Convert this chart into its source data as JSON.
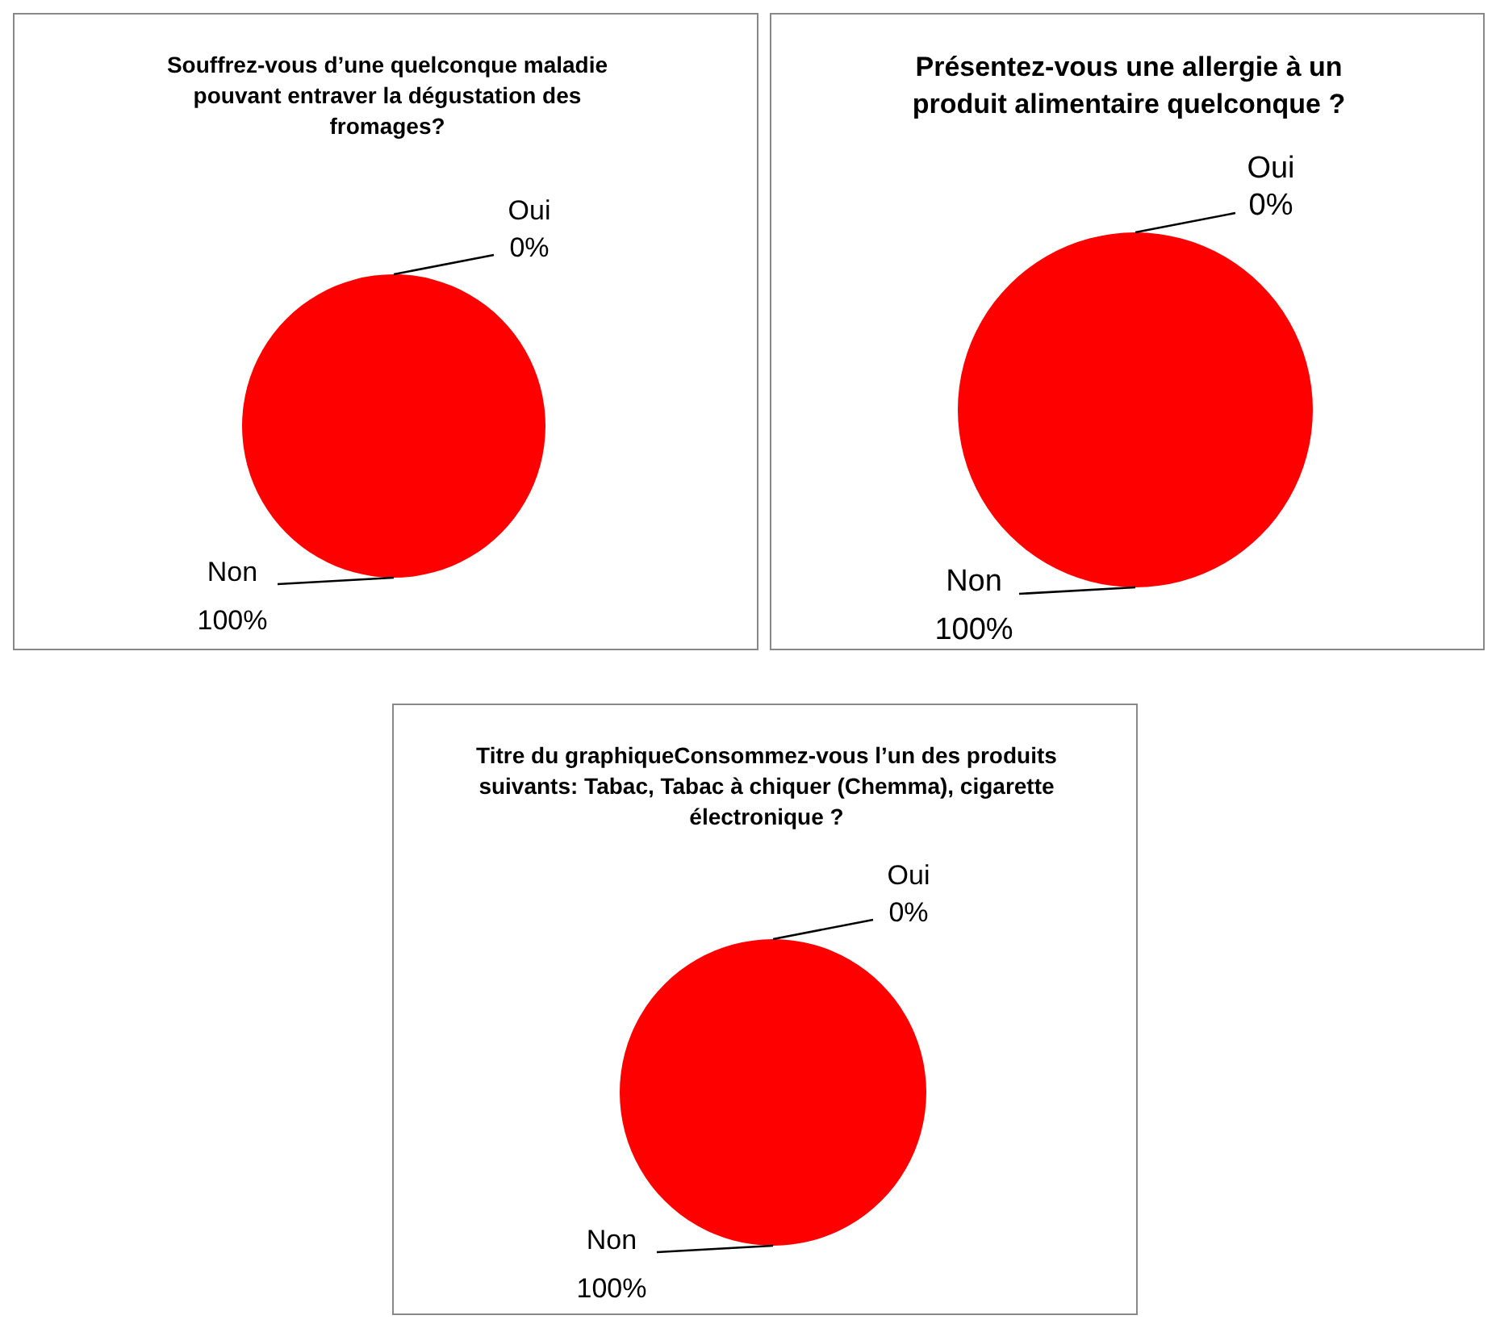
{
  "chart_data": [
    {
      "type": "pie",
      "title": "Souffrez-vous d’une quelconque maladie pouvant entraver la dégustation des fromages?",
      "categories": [
        "Oui",
        "Non"
      ],
      "values": [
        0,
        100
      ],
      "colors": [
        "#4f81bd",
        "#ff0000"
      ],
      "value_labels": [
        "0%",
        "100%"
      ]
    },
    {
      "type": "pie",
      "title": "Présentez-vous une allergie à un produit alimentaire quelconque ?",
      "categories": [
        "Oui",
        "Non"
      ],
      "values": [
        0,
        100
      ],
      "colors": [
        "#4f81bd",
        "#ff0000"
      ],
      "value_labels": [
        "0%",
        "100%"
      ]
    },
    {
      "type": "pie",
      "title": "Titre du graphiqueConsommez-vous l’un des produits suivants: Tabac, Tabac à chiquer (Chemma), cigarette électronique ?",
      "categories": [
        "Oui",
        "Non"
      ],
      "values": [
        0,
        100
      ],
      "colors": [
        "#4f81bd",
        "#ff0000"
      ],
      "value_labels": [
        "0%",
        "100%"
      ]
    }
  ]
}
